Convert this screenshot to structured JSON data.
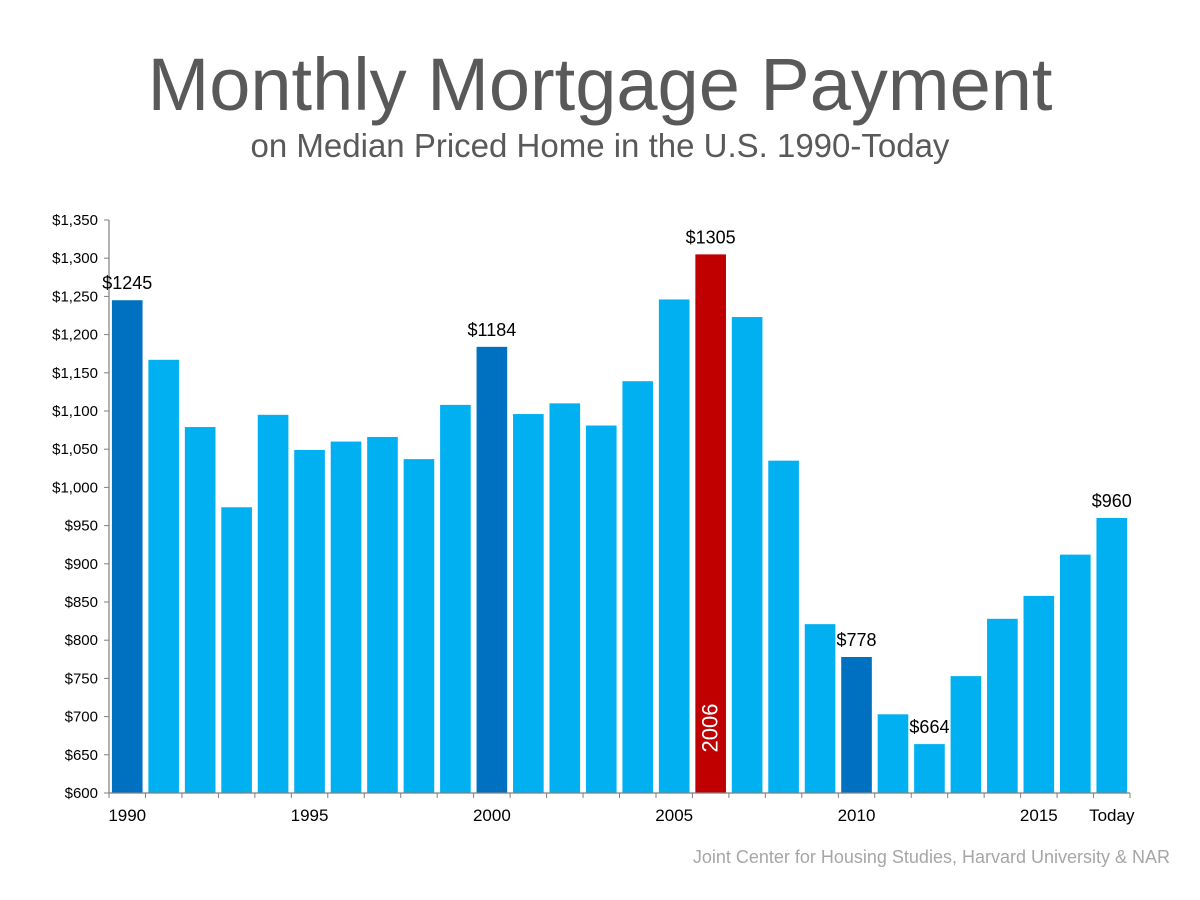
{
  "title": "Monthly Mortgage Payment",
  "subtitle": "on Median Priced Home in the U.S. 1990-Today",
  "source": "Joint Center for Housing Studies, Harvard University & NAR",
  "colors": {
    "bar": "#00b0f0",
    "highlight": "#0070c0",
    "peak": "#c00000",
    "axis": "#7f7f7f",
    "text": "#000000"
  },
  "chart_data": {
    "type": "bar",
    "categories": [
      "1990",
      "1991",
      "1992",
      "1993",
      "1994",
      "1995",
      "1996",
      "1997",
      "1998",
      "1999",
      "2000",
      "2001",
      "2002",
      "2003",
      "2004",
      "2005",
      "2006",
      "2007",
      "2008",
      "2009",
      "2010",
      "2011",
      "2012",
      "2013",
      "2014",
      "2015",
      "2016",
      "Today"
    ],
    "values": [
      1245,
      1167,
      1079,
      974,
      1095,
      1049,
      1060,
      1066,
      1037,
      1108,
      1184,
      1096,
      1110,
      1081,
      1139,
      1246,
      1305,
      1223,
      1035,
      821,
      778,
      703,
      664,
      753,
      828,
      858,
      912,
      960
    ],
    "x_tick_labels": [
      "1990",
      "",
      "",
      "",
      "",
      "1995",
      "",
      "",
      "",
      "",
      "2000",
      "",
      "",
      "",
      "",
      "2005",
      "",
      "",
      "",
      "",
      "2010",
      "",
      "",
      "",
      "",
      "2015",
      "",
      "Today"
    ],
    "y_tick_labels": [
      "$600",
      "$650",
      "$700",
      "$750",
      "$800",
      "$850",
      "$900",
      "$950",
      "$1,000",
      "$1,050",
      "$1,100",
      "$1,150",
      "$1,200",
      "$1,250",
      "$1,300",
      "$1,350"
    ],
    "ylim": [
      600,
      1350
    ],
    "ystep": 50,
    "bar_styles": [
      "highlight",
      "bar",
      "bar",
      "bar",
      "bar",
      "bar",
      "bar",
      "bar",
      "bar",
      "bar",
      "highlight",
      "bar",
      "bar",
      "bar",
      "bar",
      "bar",
      "peak",
      "bar",
      "bar",
      "bar",
      "highlight",
      "bar",
      "bar",
      "bar",
      "bar",
      "bar",
      "bar",
      "bar"
    ],
    "value_labels": [
      "$1245",
      "",
      "",
      "",
      "",
      "",
      "",
      "",
      "",
      "",
      "$1184",
      "",
      "",
      "",
      "",
      "",
      "$1305",
      "",
      "",
      "",
      "$778",
      "",
      "$664",
      "",
      "",
      "",
      "",
      "$960"
    ],
    "inside_labels": [
      "",
      "",
      "",
      "",
      "",
      "",
      "",
      "",
      "",
      "",
      "",
      "",
      "",
      "",
      "",
      "",
      "2006",
      "",
      "",
      "",
      "",
      "",
      "",
      "",
      "",
      "",
      "",
      ""
    ],
    "xlabel": "",
    "ylabel": "",
    "grid": false
  }
}
